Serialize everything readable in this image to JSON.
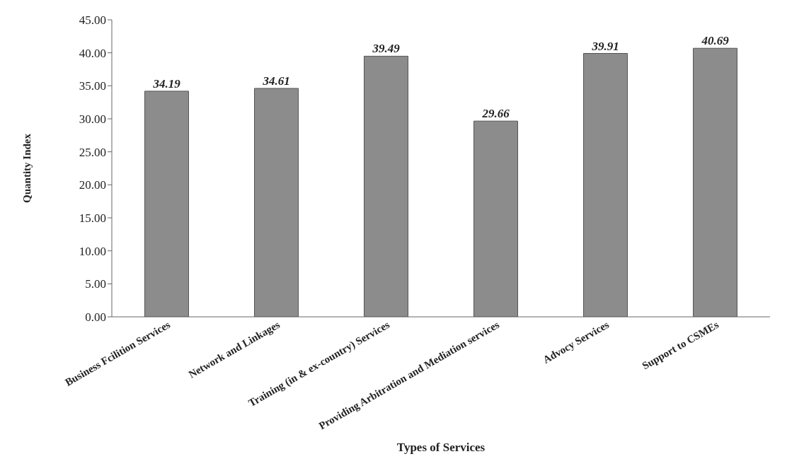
{
  "chart_data": {
    "type": "bar",
    "xlabel": "Types of Services",
    "ylabel": "Quantity Index",
    "categories": [
      "Business Fcilition Services",
      "Network and Linkages",
      "Training (in & ex-country) Services",
      "Providing Arbitration and Mediation services",
      "Advocy Services",
      "Support to CSMEs"
    ],
    "values": [
      34.19,
      34.61,
      39.49,
      29.66,
      39.91,
      40.69
    ],
    "color": "#8c8c8c",
    "ylim": [
      0,
      45
    ],
    "yticks": [
      {
        "value": 0,
        "label": "0.00"
      },
      {
        "value": 5,
        "label": "5.00"
      },
      {
        "value": 10,
        "label": "10.00"
      },
      {
        "value": 15,
        "label": "15.00"
      },
      {
        "value": 20,
        "label": "20.00"
      },
      {
        "value": 25,
        "label": "25.00"
      },
      {
        "value": 30,
        "label": "30.00"
      },
      {
        "value": 35,
        "label": "35.00"
      },
      {
        "value": 40,
        "label": "40.00"
      },
      {
        "value": 45,
        "label": "45.00"
      }
    ],
    "data_labels": true,
    "grid": false,
    "legend": false
  }
}
